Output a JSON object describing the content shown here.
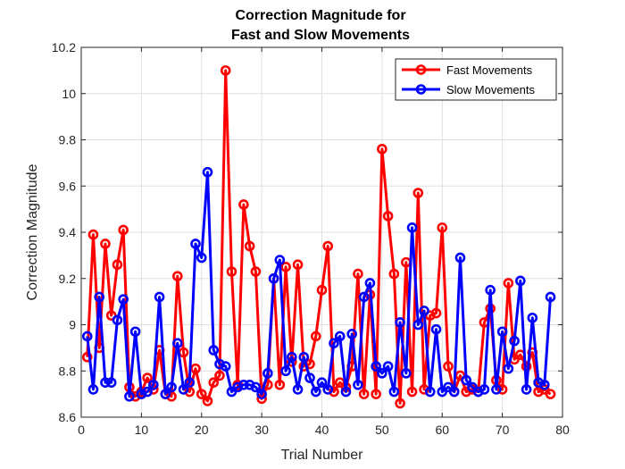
{
  "chart_data": {
    "type": "line",
    "title_line1": "Correction Magnitude for",
    "title_line2": "Fast and Slow Movements",
    "xlabel": "Trial Number",
    "ylabel": "Correction Magnitude",
    "xlim": [
      0,
      80
    ],
    "ylim": [
      8.6,
      10.2
    ],
    "xticks": [
      0,
      10,
      20,
      30,
      40,
      50,
      60,
      70,
      80
    ],
    "yticks": [
      8.6,
      8.8,
      9.0,
      9.2,
      9.4,
      9.6,
      9.8,
      10.0,
      10.2
    ],
    "ytick_labels": [
      "8.6",
      "8.8",
      "9",
      "9.2",
      "9.4",
      "9.6",
      "9.8",
      "10",
      "10.2"
    ],
    "grid": true,
    "legend_position": "top-right",
    "series": [
      {
        "name": "Fast Movements",
        "color": "#ff0000",
        "values": [
          8.86,
          9.39,
          8.9,
          9.35,
          9.04,
          9.26,
          9.41,
          8.73,
          8.69,
          8.71,
          8.77,
          8.72,
          8.89,
          8.7,
          8.69,
          9.21,
          8.88,
          8.71,
          8.81,
          8.7,
          8.67,
          8.75,
          8.78,
          10.1,
          9.23,
          8.74,
          9.52,
          9.34,
          9.23,
          8.68,
          8.74,
          9.2,
          8.74,
          9.25,
          8.84,
          9.26,
          8.82,
          8.83,
          8.95,
          9.15,
          9.34,
          8.71,
          8.75,
          8.73,
          8.82,
          9.22,
          8.7,
          9.13,
          8.7,
          9.76,
          9.47,
          9.22,
          8.66,
          9.27,
          8.71,
          9.57,
          8.72,
          9.04,
          9.05,
          9.42,
          8.82,
          8.71,
          8.78,
          8.71,
          8.72,
          8.71,
          9.01,
          9.07,
          8.76,
          8.72,
          9.18,
          8.85,
          8.87,
          8.82,
          8.88,
          8.71,
          8.72,
          8.7
        ]
      },
      {
        "name": "Slow Movements",
        "color": "#0000ff",
        "values": [
          8.95,
          8.72,
          9.12,
          8.75,
          8.75,
          9.02,
          9.11,
          8.69,
          8.97,
          8.7,
          8.71,
          8.74,
          9.12,
          8.7,
          8.73,
          8.92,
          8.72,
          8.75,
          9.35,
          9.29,
          9.66,
          8.89,
          8.83,
          8.82,
          8.71,
          8.73,
          8.74,
          8.74,
          8.73,
          8.7,
          8.79,
          9.2,
          9.28,
          8.8,
          8.86,
          8.72,
          8.86,
          8.77,
          8.71,
          8.75,
          8.72,
          8.92,
          8.95,
          8.71,
          8.96,
          8.74,
          9.12,
          9.18,
          8.82,
          8.79,
          8.82,
          8.71,
          9.01,
          8.79,
          9.42,
          9.0,
          9.06,
          8.71,
          8.98,
          8.71,
          8.73,
          8.71,
          9.29,
          8.76,
          8.73,
          8.71,
          8.72,
          9.15,
          8.72,
          8.97,
          8.81,
          8.93,
          9.19,
          8.72,
          9.03,
          8.75,
          8.74,
          9.12
        ]
      }
    ]
  }
}
